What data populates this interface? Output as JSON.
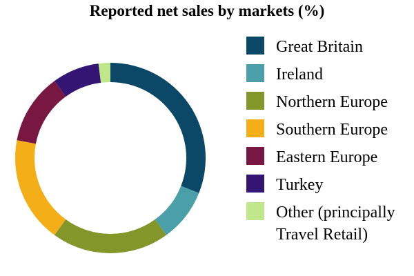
{
  "chart_data": {
    "type": "pie",
    "title": "Reported net sales by markets (%)",
    "donut": true,
    "legend_position": "right",
    "categories": [
      "Great Britain",
      "Ireland",
      "Northern Europe",
      "Southern Europe",
      "Eastern Europe",
      "Turkey",
      "Other (principally Travel Retail)"
    ],
    "legend_lines": [
      [
        "Great Britain"
      ],
      [
        "Ireland"
      ],
      [
        "Northern Europe"
      ],
      [
        "Southern Europe"
      ],
      [
        "Eastern Europe"
      ],
      [
        "Turkey"
      ],
      [
        "Other (principally",
        "Travel Retail)"
      ]
    ],
    "values": [
      31,
      9,
      20,
      18,
      12,
      8,
      2
    ],
    "colors": [
      "#0b4766",
      "#4a9fa8",
      "#83962a",
      "#f3ae18",
      "#771742",
      "#331673",
      "#c0e88a"
    ]
  }
}
